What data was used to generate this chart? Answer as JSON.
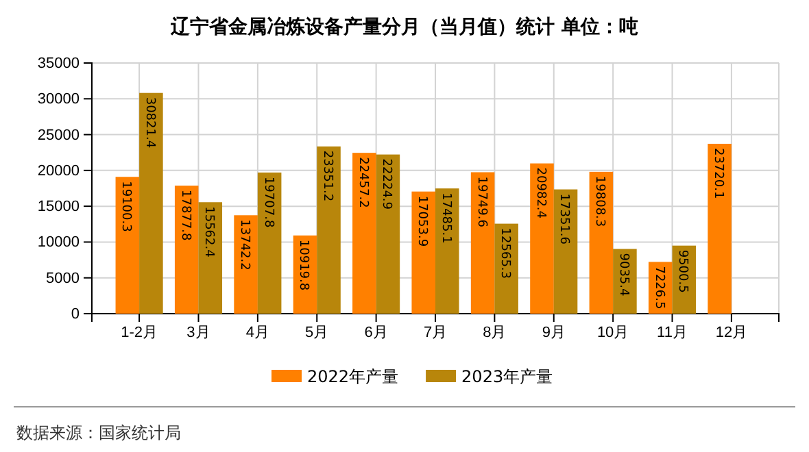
{
  "chart_data": {
    "type": "bar",
    "title": "辽宁省金属冶炼设备产量分月（当月值）统计 单位：吨",
    "categories": [
      "1-2月",
      "3月",
      "4月",
      "5月",
      "6月",
      "7月",
      "8月",
      "9月",
      "10月",
      "11月",
      "12月"
    ],
    "series": [
      {
        "name": "2022年产量",
        "color": "#ff8000",
        "values": [
          19100.3,
          17877.8,
          13742.2,
          10919.8,
          22457.2,
          17053.9,
          19749.6,
          20982.4,
          19808.3,
          7226.5,
          23720.1
        ]
      },
      {
        "name": "2023年产量",
        "color": "#b8860b",
        "values": [
          30821.4,
          15562.4,
          19707.8,
          23351.2,
          22224.9,
          17485.1,
          12565.3,
          17351.6,
          9035.4,
          9500.5,
          null
        ]
      }
    ],
    "ylim": [
      0,
      35000
    ],
    "yticks": [
      0,
      5000,
      10000,
      15000,
      20000,
      25000,
      30000,
      35000
    ],
    "grid": true,
    "legend": "bottom",
    "data_labels": true,
    "annotations": [
      "数据来源：国家统计局"
    ]
  }
}
